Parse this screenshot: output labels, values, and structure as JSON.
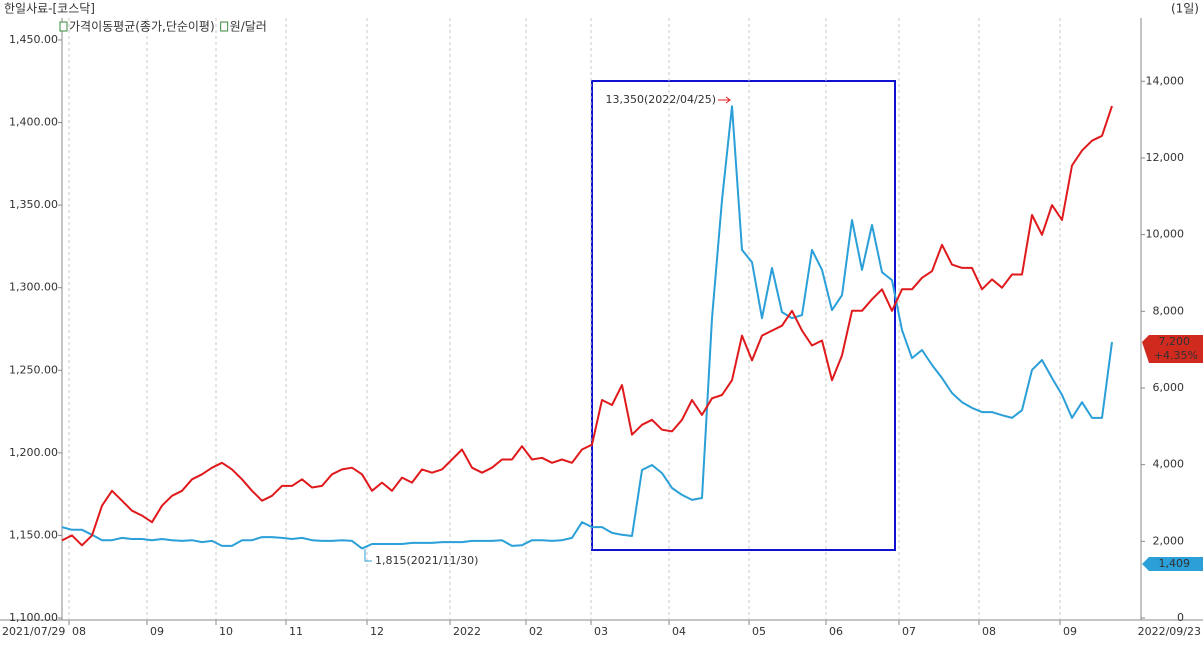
{
  "chart_data": {
    "type": "line",
    "title": "한일사료-[코스닥]",
    "period_label": "(1일)",
    "date_range": [
      "2021/07/29",
      "2022/09/23"
    ],
    "xlim": [
      0,
      107.9
    ],
    "xticks": [
      {
        "value": 0.7,
        "label": "08"
      },
      {
        "value": 8.5,
        "label": "09"
      },
      {
        "value": 15.4,
        "label": "10"
      },
      {
        "value": 22.4,
        "label": "11"
      },
      {
        "value": 30.5,
        "label": "12"
      },
      {
        "value": 38.8,
        "label": "2022"
      },
      {
        "value": 46.4,
        "label": "02"
      },
      {
        "value": 52.9,
        "label": "03"
      },
      {
        "value": 60.7,
        "label": "04"
      },
      {
        "value": 68.7,
        "label": "05"
      },
      {
        "value": 76.4,
        "label": "06"
      },
      {
        "value": 83.7,
        "label": "07"
      },
      {
        "value": 91.7,
        "label": "08"
      },
      {
        "value": 99.8,
        "label": "09"
      }
    ],
    "ylim": [
      1100,
      1463.3
    ],
    "yticks": [
      {
        "value": 1100,
        "label": "1,100.00"
      },
      {
        "value": 1150,
        "label": "1,150.00"
      },
      {
        "value": 1200,
        "label": "1,200.00"
      },
      {
        "value": 1250,
        "label": "1,250.00"
      },
      {
        "value": 1300,
        "label": "1,300.00"
      },
      {
        "value": 1350,
        "label": "1,350.00"
      },
      {
        "value": 1400,
        "label": "1,400.00"
      },
      {
        "value": 1450,
        "label": "1,450.00"
      }
    ],
    "y2lim": [
      0,
      15650
    ],
    "y2ticks": [
      0,
      {
        "value": 2000,
        "label": "2,000"
      },
      {
        "value": 4000,
        "label": "4,000"
      },
      {
        "value": 6000,
        "label": "6,000"
      },
      {
        "value": 8000,
        "label": "8,000"
      },
      {
        "value": 10000,
        "label": "10,000"
      },
      {
        "value": 12000,
        "label": "12,000"
      },
      {
        "value": 14000,
        "label": "14,000"
      }
    ],
    "grid": true,
    "series": [
      {
        "name": "가격이동평균(종가,단순이평)",
        "color": "#2a9fd8",
        "axis": "y2",
        "values": [
          2370,
          2300,
          2300,
          2170,
          2030,
          2030,
          2090,
          2060,
          2060,
          2030,
          2060,
          2030,
          2010,
          2030,
          1980,
          2010,
          1880,
          1880,
          2030,
          2030,
          2110,
          2110,
          2090,
          2060,
          2090,
          2030,
          2010,
          2010,
          2030,
          2010,
          1815,
          1930,
          1930,
          1930,
          1930,
          1960,
          1960,
          1960,
          1980,
          1980,
          1980,
          2010,
          2010,
          2010,
          2030,
          1880,
          1900,
          2030,
          2030,
          2010,
          2030,
          2090,
          2500,
          2370,
          2370,
          2220,
          2170,
          2140,
          3860,
          3990,
          3780,
          3390,
          3210,
          3080,
          3130,
          7820,
          10900,
          13350,
          9600,
          9280,
          7820,
          9130,
          7980,
          7820,
          7900,
          9600,
          9080,
          8030,
          8420,
          10380,
          9080,
          10250,
          9020,
          8810,
          7510,
          6780,
          6990,
          6600,
          6260,
          5870,
          5630,
          5480,
          5370,
          5370,
          5290,
          5220,
          5420,
          6470,
          6730,
          6260,
          5820,
          5220,
          5630,
          5220,
          5220,
          7200
        ]
      },
      {
        "name": "원/달러",
        "color": "#e0191c",
        "values": [
          1147,
          1150,
          1144,
          1150,
          1168,
          1177,
          1171,
          1165,
          1162,
          1158,
          1168,
          1174,
          1177,
          1184,
          1187,
          1191,
          1194,
          1190,
          1184,
          1177,
          1171,
          1174,
          1180,
          1180,
          1184,
          1179,
          1180,
          1187,
          1190,
          1191,
          1187,
          1177,
          1182,
          1177,
          1185,
          1182,
          1190,
          1188,
          1190,
          1196,
          1202,
          1191,
          1188,
          1191,
          1196,
          1196,
          1204,
          1196,
          1197,
          1194,
          1196,
          1194,
          1202,
          1205,
          1232,
          1229,
          1241,
          1211,
          1217,
          1220,
          1214,
          1213,
          1220,
          1232,
          1223,
          1233,
          1235,
          1244,
          1271,
          1256,
          1271,
          1274,
          1277,
          1286,
          1274,
          1265,
          1268,
          1244,
          1259,
          1286,
          1286,
          1293,
          1299,
          1286,
          1299,
          1299,
          1306,
          1310,
          1326,
          1314,
          1312,
          1312,
          1299,
          1305,
          1300,
          1308,
          1308,
          1344,
          1332,
          1350,
          1341,
          1374,
          1383,
          1389,
          1392,
          1410
        ]
      }
    ],
    "annotations": [
      {
        "text": "13,350(2022/04/25)"
      },
      {
        "text": "1,815(2021/11/30)"
      }
    ],
    "value_tags": [
      {
        "value": 7200,
        "label": "7,200",
        "change": "+4.35%",
        "color": "#d0291e"
      },
      {
        "value": 1409,
        "label": "1,409",
        "color": "#2a9fd8"
      }
    ]
  }
}
